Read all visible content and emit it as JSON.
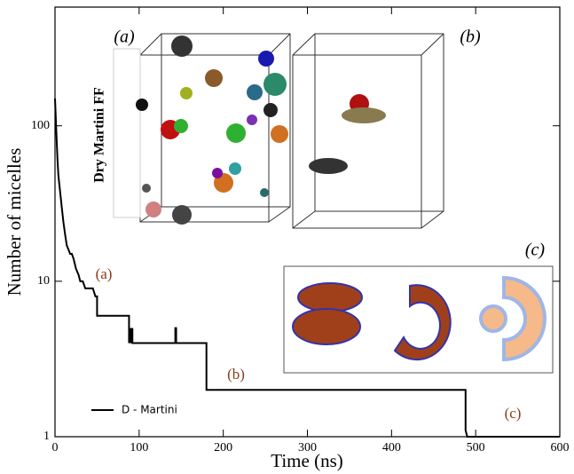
{
  "chart_data": {
    "type": "line",
    "x_label": "Time (ns)",
    "y_label": "Number of micelles",
    "log_y": true,
    "xlim": [
      0,
      600
    ],
    "xticks": [
      0,
      100,
      200,
      300,
      400,
      500,
      600
    ],
    "ylim": [
      1,
      580
    ],
    "yticks": [
      1,
      10,
      100
    ],
    "legend": "lower left",
    "series": [
      {
        "name": "D - Martini",
        "color": "#000000",
        "x": [
          0,
          1,
          2,
          3,
          4,
          6,
          8,
          10,
          12,
          14,
          16,
          18,
          20,
          22,
          25,
          28,
          30,
          33,
          36,
          45,
          48,
          50,
          50,
          88,
          88,
          89,
          89,
          90,
          90,
          91,
          91,
          92,
          92,
          143,
          143,
          144,
          144,
          180,
          180,
          488,
          488,
          490,
          600
        ],
        "values": [
          150,
          110,
          80,
          60,
          48,
          38,
          30,
          24,
          20,
          17,
          16,
          15,
          15,
          14,
          12,
          11,
          10,
          10,
          9,
          9,
          8,
          8,
          6,
          6,
          4,
          5,
          4,
          5,
          4,
          5,
          4,
          5,
          4,
          4,
          5,
          5,
          4,
          4,
          2,
          2,
          1.1,
          1,
          1
        ]
      }
    ],
    "annotations": [
      "(a)",
      "(b)",
      "(c)"
    ],
    "inset_labels": [
      "(a)",
      "(b)",
      "(c)"
    ],
    "inset_side_label": "Dry Martini FF"
  }
}
